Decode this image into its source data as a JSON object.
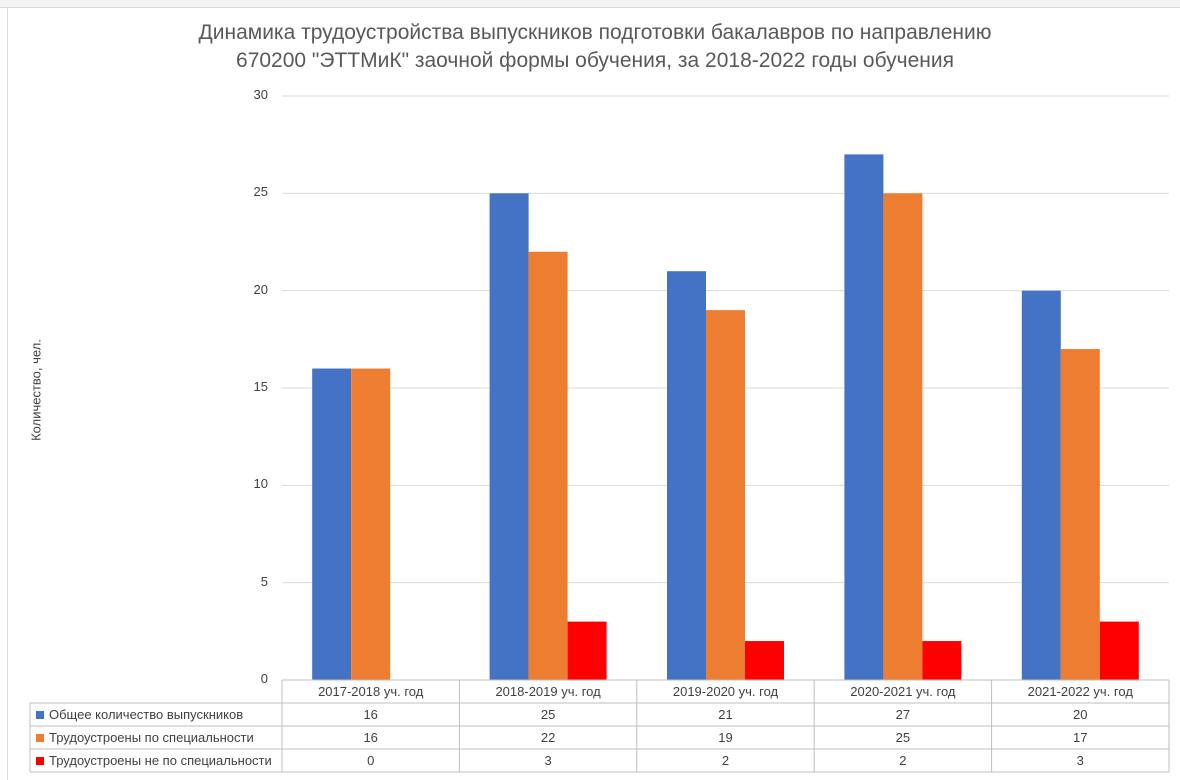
{
  "chart_data": {
    "type": "bar",
    "title": "Динамика трудоустройства выпускников подготовки бакалавров по направлению\n670200 \"ЭТТМиК\" заочной формы обучения, за 2018-2022 годы обучения",
    "ylabel": "Количество, чел.",
    "xlabel": "",
    "ylim": [
      0,
      30
    ],
    "yticks": [
      "0",
      "5",
      "10",
      "15",
      "20",
      "25",
      "30"
    ],
    "categories": [
      "2017-2018 уч. год",
      "2018-2019 уч. год",
      "2019-2020 уч. год",
      "2020-2021 уч. год",
      "2021-2022 уч. год"
    ],
    "series": [
      {
        "name": "Общее количество выпускников",
        "color": "#4472c4",
        "values": [
          16,
          25,
          21,
          27,
          20
        ]
      },
      {
        "name": "Трудоустроены по специальности",
        "color": "#ed7d31",
        "values": [
          16,
          22,
          19,
          25,
          17
        ]
      },
      {
        "name": "Трудоустроены не по специальности",
        "color": "#ff0000",
        "values": [
          0,
          3,
          2,
          2,
          3
        ]
      }
    ],
    "grid": true,
    "legend": "data-table",
    "table_values": [
      [
        "16",
        "25",
        "21",
        "27",
        "20"
      ],
      [
        "16",
        "22",
        "19",
        "25",
        "17"
      ],
      [
        "0",
        "3",
        "2",
        "2",
        "3"
      ]
    ]
  }
}
